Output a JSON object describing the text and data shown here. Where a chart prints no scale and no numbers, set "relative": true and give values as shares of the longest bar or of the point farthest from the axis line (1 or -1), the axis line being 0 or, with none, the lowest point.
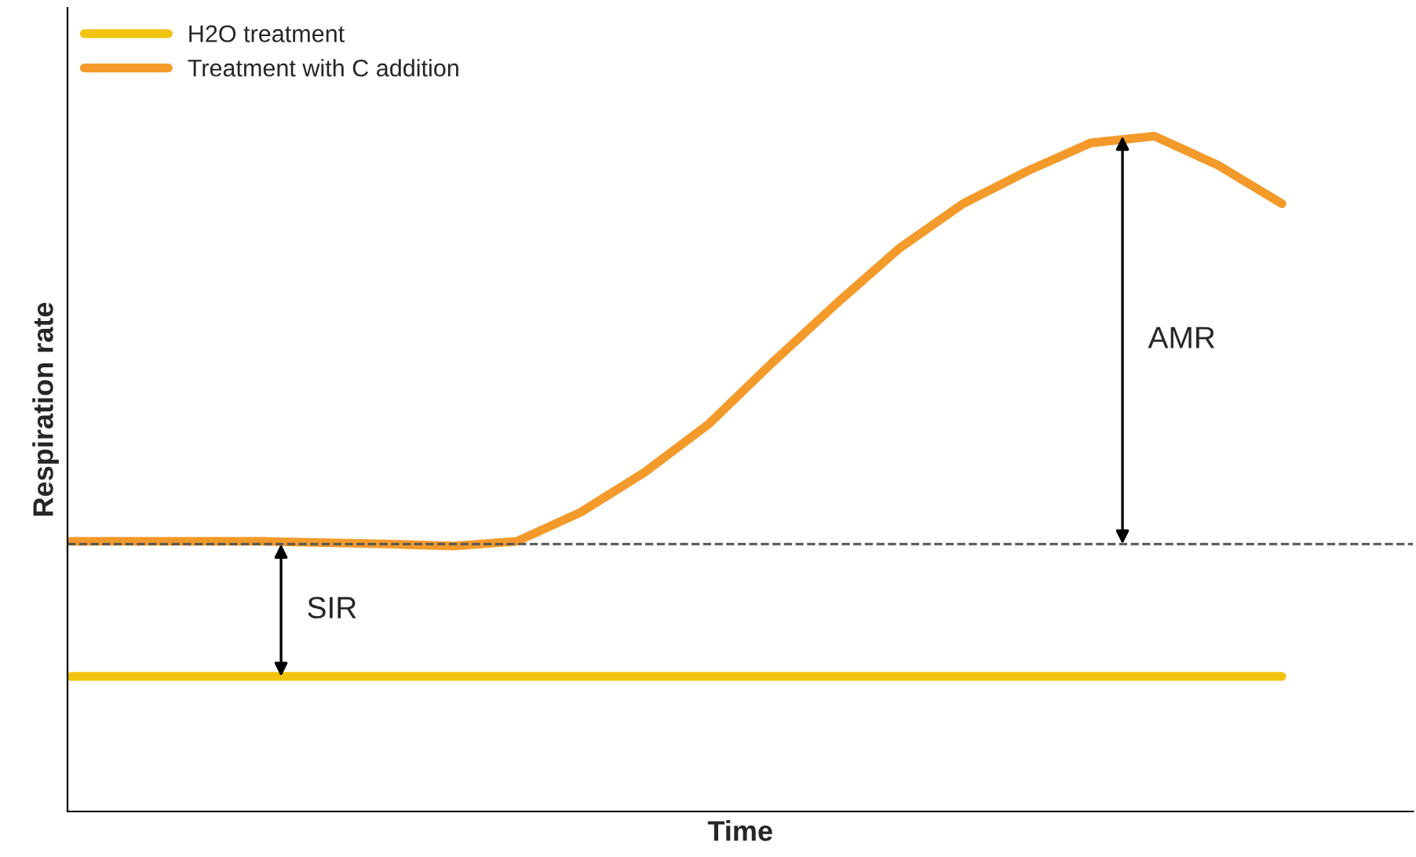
{
  "chart_data": {
    "type": "line",
    "relative": true,
    "xlabel": "Time",
    "ylabel": "Respiration rate",
    "categories": [
      null,
      null,
      null,
      null,
      null,
      null,
      null,
      null,
      null,
      null,
      null,
      null,
      null,
      null,
      null,
      null,
      null,
      null,
      null,
      null
    ],
    "series": [
      {
        "name": "H2O treatment",
        "color": "#f2c40f",
        "values": [
          0.2,
          0.2,
          0.2,
          0.2,
          0.2,
          0.2,
          0.2,
          0.2,
          0.2,
          0.2,
          0.2,
          0.2,
          0.2,
          0.2,
          0.2,
          0.2,
          0.2,
          0.2,
          0.2,
          0.2
        ]
      },
      {
        "name": "Treatment with C addition",
        "color": "#f39a2b",
        "values": [
          0.4,
          0.4,
          0.4,
          0.4,
          0.398,
          0.396,
          0.393,
          0.4,
          0.443,
          0.502,
          0.573,
          0.664,
          0.751,
          0.834,
          0.9,
          0.948,
          0.99,
          1.0,
          0.957,
          0.9
        ]
      }
    ],
    "ref_lines": [
      {
        "axis": "y",
        "value": 0.396,
        "color": "#555555",
        "line_style": "dashed"
      }
    ],
    "annotations": [
      "AMR",
      "SIR"
    ],
    "legend": "top left",
    "marker": "none",
    "line_style": "solid"
  }
}
